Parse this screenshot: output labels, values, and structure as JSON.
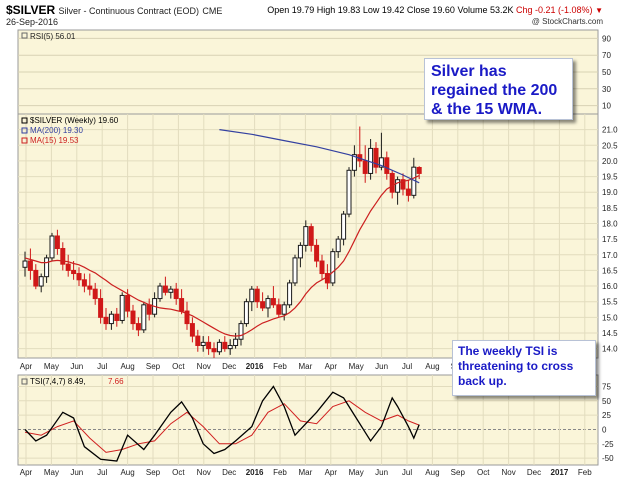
{
  "header": {
    "symbol": "$SILVER",
    "description": "Silver - Continuous Contract (EOD)",
    "exchange": "CME",
    "date": "26-Sep-2016",
    "open": "Open 19.79",
    "high": "High 19.83",
    "low": "Low 19.42",
    "close": "Close 19.60",
    "volume": "Volume 53.2K",
    "chg": "Chg -0.21 (-1.08%)",
    "copyright": "@ StockCharts.com"
  },
  "annotations": {
    "top_callout": "Silver has regained the 200 & the 15 WMA.",
    "bottom_callout": "The weekly TSI is threatening to cross back up."
  },
  "colors": {
    "panel_bg": "#faf5d9",
    "up_candle": "#1a1a1a",
    "down_candle": "#d01818",
    "ma200": "#3340a0",
    "ma15": "#cc2020",
    "tsi": "#000000",
    "tsi_signal": "#d02020",
    "callout_text": "#1a1ac6"
  },
  "chart_data": [
    {
      "type": "line",
      "panel": "RSI",
      "legend": "RSI(5) 56.01",
      "y_ticks": [
        10,
        30,
        50,
        70,
        90
      ],
      "ylim": [
        0,
        100
      ]
    },
    {
      "type": "candlestick",
      "panel": "price",
      "legend": [
        {
          "name": "$SILVER (Weekly) 19.60",
          "color": "#000000"
        },
        {
          "name": "MA(200) 19.30",
          "color": "#3340a0"
        },
        {
          "name": "MA(15) 19.53",
          "color": "#cc2020"
        }
      ],
      "y_ticks": [
        14.0,
        14.5,
        15.0,
        15.5,
        16.0,
        16.5,
        17.0,
        17.5,
        18.0,
        18.5,
        19.0,
        19.5,
        20.0,
        20.5,
        21.0
      ],
      "ylim": [
        13.7,
        21.5
      ],
      "x_labels": [
        "Apr",
        "May",
        "Jun",
        "Jul",
        "Aug",
        "Sep",
        "Oct",
        "Nov",
        "Dec",
        "2016",
        "Feb",
        "Mar",
        "Apr",
        "May",
        "Jun",
        "Jul",
        "Aug",
        "Sep",
        "Oct",
        "Nov",
        "Dec",
        "2017",
        "Feb"
      ],
      "candles": [
        {
          "o": 16.6,
          "h": 17.1,
          "l": 16.3,
          "c": 16.8
        },
        {
          "o": 16.8,
          "h": 17.2,
          "l": 16.2,
          "c": 16.5
        },
        {
          "o": 16.5,
          "h": 16.7,
          "l": 15.9,
          "c": 16.0
        },
        {
          "o": 16.0,
          "h": 16.4,
          "l": 15.8,
          "c": 16.3
        },
        {
          "o": 16.3,
          "h": 17.0,
          "l": 16.1,
          "c": 16.9
        },
        {
          "o": 16.9,
          "h": 17.7,
          "l": 16.8,
          "c": 17.6
        },
        {
          "o": 17.6,
          "h": 17.8,
          "l": 17.0,
          "c": 17.2
        },
        {
          "o": 17.2,
          "h": 17.4,
          "l": 16.5,
          "c": 16.7
        },
        {
          "o": 16.7,
          "h": 17.0,
          "l": 16.3,
          "c": 16.5
        },
        {
          "o": 16.5,
          "h": 16.8,
          "l": 16.2,
          "c": 16.4
        },
        {
          "o": 16.4,
          "h": 16.6,
          "l": 16.0,
          "c": 16.2
        },
        {
          "o": 16.2,
          "h": 16.4,
          "l": 15.8,
          "c": 16.0
        },
        {
          "o": 16.0,
          "h": 16.4,
          "l": 15.7,
          "c": 15.9
        },
        {
          "o": 15.9,
          "h": 16.1,
          "l": 15.4,
          "c": 15.6
        },
        {
          "o": 15.6,
          "h": 15.9,
          "l": 14.8,
          "c": 15.0
        },
        {
          "o": 15.0,
          "h": 15.3,
          "l": 14.6,
          "c": 14.8
        },
        {
          "o": 14.8,
          "h": 15.2,
          "l": 14.6,
          "c": 15.1
        },
        {
          "o": 15.1,
          "h": 15.3,
          "l": 14.7,
          "c": 14.9
        },
        {
          "o": 14.9,
          "h": 15.8,
          "l": 14.8,
          "c": 15.7
        },
        {
          "o": 15.7,
          "h": 15.9,
          "l": 15.0,
          "c": 15.2
        },
        {
          "o": 15.2,
          "h": 15.4,
          "l": 14.6,
          "c": 14.8
        },
        {
          "o": 14.8,
          "h": 15.0,
          "l": 14.4,
          "c": 14.6
        },
        {
          "o": 14.6,
          "h": 15.5,
          "l": 14.5,
          "c": 15.4
        },
        {
          "o": 15.4,
          "h": 15.6,
          "l": 14.9,
          "c": 15.1
        },
        {
          "o": 15.1,
          "h": 15.8,
          "l": 15.0,
          "c": 15.6
        },
        {
          "o": 15.6,
          "h": 16.1,
          "l": 15.5,
          "c": 16.0
        },
        {
          "o": 16.0,
          "h": 16.3,
          "l": 15.7,
          "c": 15.8
        },
        {
          "o": 15.8,
          "h": 16.0,
          "l": 15.6,
          "c": 15.9
        },
        {
          "o": 15.9,
          "h": 16.1,
          "l": 15.4,
          "c": 15.6
        },
        {
          "o": 15.6,
          "h": 15.9,
          "l": 15.1,
          "c": 15.2
        },
        {
          "o": 15.2,
          "h": 15.5,
          "l": 14.6,
          "c": 14.8
        },
        {
          "o": 14.8,
          "h": 15.0,
          "l": 14.2,
          "c": 14.4
        },
        {
          "o": 14.4,
          "h": 14.6,
          "l": 13.9,
          "c": 14.1
        },
        {
          "o": 14.1,
          "h": 14.4,
          "l": 13.9,
          "c": 14.2
        },
        {
          "o": 14.2,
          "h": 14.4,
          "l": 13.8,
          "c": 14.0
        },
        {
          "o": 14.0,
          "h": 14.2,
          "l": 13.7,
          "c": 13.9
        },
        {
          "o": 13.9,
          "h": 14.3,
          "l": 13.8,
          "c": 14.2
        },
        {
          "o": 14.2,
          "h": 14.4,
          "l": 13.9,
          "c": 14.0
        },
        {
          "o": 14.0,
          "h": 14.3,
          "l": 13.8,
          "c": 14.1
        },
        {
          "o": 14.1,
          "h": 14.5,
          "l": 14.0,
          "c": 14.3
        },
        {
          "o": 14.3,
          "h": 14.9,
          "l": 14.1,
          "c": 14.8
        },
        {
          "o": 14.8,
          "h": 15.6,
          "l": 14.7,
          "c": 15.5
        },
        {
          "o": 15.5,
          "h": 16.0,
          "l": 15.2,
          "c": 15.9
        },
        {
          "o": 15.9,
          "h": 16.0,
          "l": 15.3,
          "c": 15.5
        },
        {
          "o": 15.5,
          "h": 15.8,
          "l": 15.2,
          "c": 15.3
        },
        {
          "o": 15.3,
          "h": 15.7,
          "l": 15.0,
          "c": 15.6
        },
        {
          "o": 15.6,
          "h": 16.0,
          "l": 15.3,
          "c": 15.4
        },
        {
          "o": 15.4,
          "h": 15.6,
          "l": 15.0,
          "c": 15.1
        },
        {
          "o": 15.1,
          "h": 15.5,
          "l": 14.9,
          "c": 15.4
        },
        {
          "o": 15.4,
          "h": 16.2,
          "l": 15.3,
          "c": 16.1
        },
        {
          "o": 16.1,
          "h": 17.0,
          "l": 16.0,
          "c": 16.9
        },
        {
          "o": 16.9,
          "h": 17.4,
          "l": 16.6,
          "c": 17.3
        },
        {
          "o": 17.3,
          "h": 18.1,
          "l": 17.1,
          "c": 17.9
        },
        {
          "o": 17.9,
          "h": 18.0,
          "l": 17.1,
          "c": 17.3
        },
        {
          "o": 17.3,
          "h": 17.5,
          "l": 16.6,
          "c": 16.8
        },
        {
          "o": 16.8,
          "h": 17.0,
          "l": 16.2,
          "c": 16.4
        },
        {
          "o": 16.4,
          "h": 16.7,
          "l": 15.9,
          "c": 16.1
        },
        {
          "o": 16.1,
          "h": 17.2,
          "l": 16.0,
          "c": 17.1
        },
        {
          "o": 17.1,
          "h": 17.6,
          "l": 16.9,
          "c": 17.5
        },
        {
          "o": 17.5,
          "h": 18.4,
          "l": 17.3,
          "c": 18.3
        },
        {
          "o": 18.3,
          "h": 19.8,
          "l": 18.2,
          "c": 19.7
        },
        {
          "o": 19.7,
          "h": 20.5,
          "l": 19.5,
          "c": 20.2
        },
        {
          "o": 20.2,
          "h": 21.1,
          "l": 19.8,
          "c": 20.0
        },
        {
          "o": 20.0,
          "h": 20.5,
          "l": 19.3,
          "c": 19.6
        },
        {
          "o": 19.6,
          "h": 20.7,
          "l": 19.4,
          "c": 20.4
        },
        {
          "o": 20.4,
          "h": 20.6,
          "l": 19.6,
          "c": 19.8
        },
        {
          "o": 19.8,
          "h": 20.9,
          "l": 19.7,
          "c": 20.1
        },
        {
          "o": 20.1,
          "h": 20.3,
          "l": 19.4,
          "c": 19.6
        },
        {
          "o": 19.6,
          "h": 19.7,
          "l": 18.8,
          "c": 19.0
        },
        {
          "o": 19.0,
          "h": 19.5,
          "l": 18.6,
          "c": 19.4
        },
        {
          "o": 19.4,
          "h": 19.6,
          "l": 18.9,
          "c": 19.1
        },
        {
          "o": 19.1,
          "h": 19.4,
          "l": 18.7,
          "c": 18.9
        },
        {
          "o": 18.9,
          "h": 20.1,
          "l": 18.8,
          "c": 19.8
        },
        {
          "o": 19.79,
          "h": 19.83,
          "l": 19.42,
          "c": 19.6
        }
      ],
      "ma15": [
        16.9,
        16.85,
        16.8,
        16.75,
        16.75,
        16.8,
        16.82,
        16.8,
        16.78,
        16.72,
        16.68,
        16.6,
        16.5,
        16.42,
        16.3,
        16.18,
        16.05,
        15.95,
        15.85,
        15.75,
        15.65,
        15.55,
        15.48,
        15.4,
        15.35,
        15.3,
        15.28,
        15.26,
        15.22,
        15.18,
        15.12,
        15.05,
        14.95,
        14.85,
        14.75,
        14.65,
        14.55,
        14.47,
        14.42,
        14.4,
        14.42,
        14.5,
        14.6,
        14.72,
        14.82,
        14.88,
        14.95,
        15.0,
        15.05,
        15.15,
        15.3,
        15.5,
        15.75,
        15.95,
        16.1,
        16.2,
        16.3,
        16.45,
        16.6,
        16.8,
        17.1,
        17.45,
        17.8,
        18.1,
        18.4,
        18.65,
        18.9,
        19.1,
        19.2,
        19.3,
        19.35,
        19.38,
        19.45,
        19.53
      ],
      "ma200": [
        {
          "i": 36,
          "v": 21.0
        },
        {
          "i": 42,
          "v": 20.85
        },
        {
          "i": 48,
          "v": 20.65
        },
        {
          "i": 54,
          "v": 20.45
        },
        {
          "i": 60,
          "v": 20.2
        },
        {
          "i": 66,
          "v": 19.85
        },
        {
          "i": 70,
          "v": 19.55
        },
        {
          "i": 73,
          "v": 19.3
        }
      ]
    },
    {
      "type": "line",
      "panel": "TSI",
      "legend": [
        {
          "name": "TSI(7,4,7) 8.49,",
          "color": "#000000"
        },
        {
          "name": "7.66",
          "color": "#d02020"
        }
      ],
      "y_ticks": [
        -50,
        -25,
        0,
        25,
        50,
        75
      ],
      "ylim": [
        -62,
        95
      ],
      "tsi": [
        {
          "i": 0,
          "v": 0
        },
        {
          "i": 2,
          "v": -20
        },
        {
          "i": 4,
          "v": -10
        },
        {
          "i": 7,
          "v": 30
        },
        {
          "i": 9,
          "v": 20
        },
        {
          "i": 11,
          "v": -30
        },
        {
          "i": 14,
          "v": -52
        },
        {
          "i": 17,
          "v": -55
        },
        {
          "i": 19,
          "v": -10
        },
        {
          "i": 22,
          "v": -35
        },
        {
          "i": 24,
          "v": -10
        },
        {
          "i": 27,
          "v": 30
        },
        {
          "i": 29,
          "v": 48
        },
        {
          "i": 31,
          "v": 20
        },
        {
          "i": 33,
          "v": -25
        },
        {
          "i": 35,
          "v": -42
        },
        {
          "i": 37,
          "v": -35
        },
        {
          "i": 39,
          "v": -20
        },
        {
          "i": 42,
          "v": 5
        },
        {
          "i": 44,
          "v": 50
        },
        {
          "i": 46,
          "v": 75
        },
        {
          "i": 48,
          "v": 40
        },
        {
          "i": 50,
          "v": -10
        },
        {
          "i": 52,
          "v": 10
        },
        {
          "i": 54,
          "v": 30
        },
        {
          "i": 57,
          "v": 65
        },
        {
          "i": 59,
          "v": 55
        },
        {
          "i": 61,
          "v": 25
        },
        {
          "i": 63,
          "v": -5
        },
        {
          "i": 64,
          "v": -20
        },
        {
          "i": 66,
          "v": 5
        },
        {
          "i": 68,
          "v": 55
        },
        {
          "i": 69,
          "v": 40
        },
        {
          "i": 71,
          "v": 5
        },
        {
          "i": 72,
          "v": -15
        },
        {
          "i": 73,
          "v": 8.49
        }
      ],
      "signal": [
        {
          "i": 0,
          "v": -5
        },
        {
          "i": 3,
          "v": -10
        },
        {
          "i": 6,
          "v": 5
        },
        {
          "i": 9,
          "v": 15
        },
        {
          "i": 12,
          "v": -15
        },
        {
          "i": 15,
          "v": -40
        },
        {
          "i": 18,
          "v": -35
        },
        {
          "i": 21,
          "v": -25
        },
        {
          "i": 24,
          "v": -20
        },
        {
          "i": 27,
          "v": 10
        },
        {
          "i": 30,
          "v": 30
        },
        {
          "i": 33,
          "v": 5
        },
        {
          "i": 36,
          "v": -25
        },
        {
          "i": 39,
          "v": -25
        },
        {
          "i": 42,
          "v": -10
        },
        {
          "i": 45,
          "v": 30
        },
        {
          "i": 48,
          "v": 45
        },
        {
          "i": 51,
          "v": 15
        },
        {
          "i": 54,
          "v": 10
        },
        {
          "i": 57,
          "v": 40
        },
        {
          "i": 60,
          "v": 50
        },
        {
          "i": 63,
          "v": 30
        },
        {
          "i": 66,
          "v": 15
        },
        {
          "i": 69,
          "v": 25
        },
        {
          "i": 71,
          "v": 15
        },
        {
          "i": 73,
          "v": 7.66
        }
      ]
    }
  ]
}
